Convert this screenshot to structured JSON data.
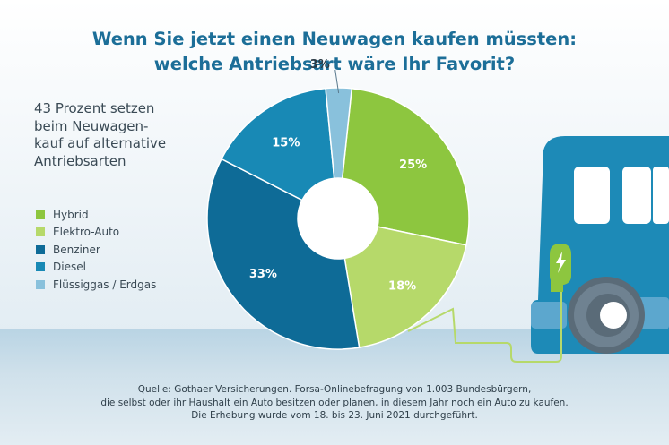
{
  "title": {
    "line1": "Wenn Sie jetzt einen Neuwagen kaufen müssten:",
    "line2": "welche Antriebsart wäre Ihr Favorit?"
  },
  "subtitle": {
    "lines": [
      "43 Prozent setzen",
      "beim Neuwagen-",
      "kauf auf alternative",
      "Antriebsarten"
    ]
  },
  "chart_data": {
    "type": "pie",
    "donut": true,
    "title": "Wenn Sie jetzt einen Neuwagen kaufen müssten: welche Antriebsart wäre Ihr Favorit?",
    "legend_position": "left",
    "unit": "%",
    "slices": [
      {
        "name": "Hybrid",
        "value": 25,
        "label": "25%",
        "color": "#8dc63f",
        "label_color": "#ffffff"
      },
      {
        "name": "Elektro-Auto",
        "value": 18,
        "label": "18%",
        "color": "#b6d96a",
        "label_color": "#ffffff"
      },
      {
        "name": "Benziner",
        "value": 33,
        "label": "33%",
        "color": "#0e6b97",
        "label_color": "#ffffff"
      },
      {
        "name": "Diesel",
        "value": 15,
        "label": "15%",
        "color": "#1889b5",
        "label_color": "#ffffff"
      },
      {
        "name": "Flüssiggas / Erdgas",
        "value": 3,
        "label": "3%",
        "color": "#89c1dc",
        "label_color": "#2b3a45"
      }
    ]
  },
  "illustration": {
    "charger_icon": "lightning-bolt-icon",
    "vehicle_icon": "electric-car-icon",
    "colors": {
      "car": "#1d8ab7",
      "charger": "#8dc63f",
      "tire": "#5a6b78"
    }
  },
  "source": {
    "line1": "Quelle: Gothaer Versicherungen. Forsa-Onlinebefragung von 1.003 Bundesbürgern,",
    "line2": "die selbst oder ihr Haushalt ein Auto besitzen oder planen, in diesem Jahr noch ein Auto zu kaufen.",
    "line3": "Die Erhebung wurde vom 18. bis 23. Juni 2021 durchgeführt."
  }
}
